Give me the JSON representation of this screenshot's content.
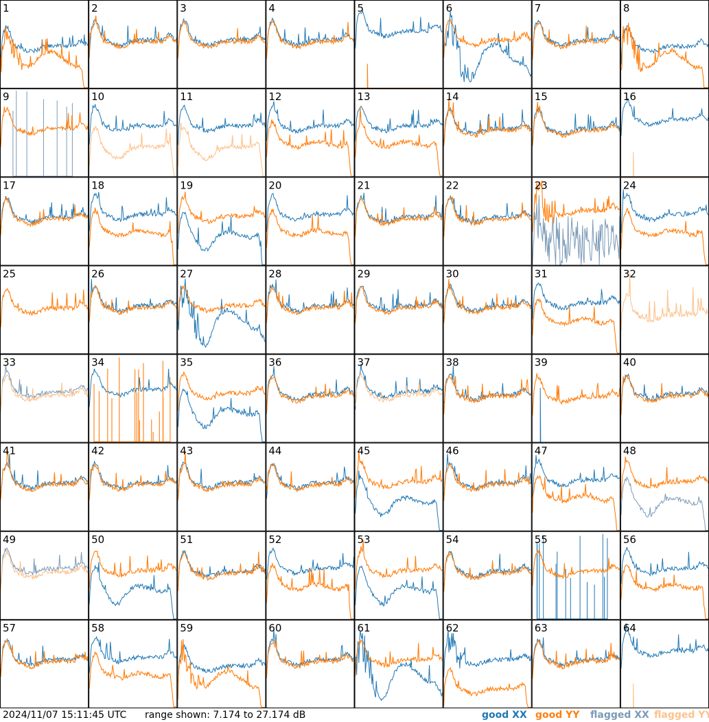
{
  "footer": {
    "timestamp": "2024/11/07 15:11:45 UTC",
    "range": "range shown: 7.174 to 27.174 dB"
  },
  "legend": {
    "good_xx": "good XX",
    "good_yy": "good YY",
    "flagged_xx": "flagged XX",
    "flagged_yy": "flagged YY"
  },
  "colors": {
    "good_xx": "#1f77b4",
    "good_yy": "#ff7f0e",
    "flagged_xx": "#7b9ab8",
    "flagged_yy": "#fdc28c",
    "frame": "#000000"
  },
  "chart_data": {
    "type": "line",
    "layout": "8x8 small multiples of per-tile spectra",
    "grid": false,
    "legend_position": "bottom-right",
    "ylim_db": [
      7.174,
      27.174
    ],
    "series_types": [
      "good XX",
      "good YY",
      "flagged XX",
      "flagged YY"
    ],
    "tiles": [
      {
        "label": "1",
        "xx": "good",
        "yy": "good",
        "shape": "rolloff"
      },
      {
        "label": "2",
        "xx": "good",
        "yy": "good",
        "shape": "flat"
      },
      {
        "label": "3",
        "xx": "good",
        "yy": "good",
        "shape": "flat"
      },
      {
        "label": "4",
        "xx": "good",
        "yy": "good",
        "shape": "flat"
      },
      {
        "label": "5",
        "xx": "good",
        "yy": "good",
        "shape": "yydead"
      },
      {
        "label": "6",
        "xx": "good",
        "yy": "good",
        "shape": "deepdip"
      },
      {
        "label": "7",
        "xx": "good",
        "yy": "good",
        "shape": "flat"
      },
      {
        "label": "8",
        "xx": "good",
        "yy": "good",
        "shape": "rolloff"
      },
      {
        "label": "9",
        "xx": "flagged",
        "yy": "good",
        "shape": "xxspikes"
      },
      {
        "label": "10",
        "xx": "good",
        "yy": "flagged",
        "shape": "splitlow"
      },
      {
        "label": "11",
        "xx": "good",
        "yy": "flagged",
        "shape": "splitlow"
      },
      {
        "label": "12",
        "xx": "good",
        "yy": "good",
        "shape": "split"
      },
      {
        "label": "13",
        "xx": "good",
        "yy": "good",
        "shape": "split"
      },
      {
        "label": "14",
        "xx": "good",
        "yy": "good",
        "shape": "flat"
      },
      {
        "label": "15",
        "xx": "good",
        "yy": "good",
        "shape": "flat"
      },
      {
        "label": "16",
        "xx": "good",
        "yy": "flagged",
        "shape": "yydead"
      },
      {
        "label": "17",
        "xx": "good",
        "yy": "good",
        "shape": "flat"
      },
      {
        "label": "18",
        "xx": "good",
        "yy": "good",
        "shape": "split"
      },
      {
        "label": "19",
        "xx": "good",
        "yy": "good",
        "shape": "splitinv"
      },
      {
        "label": "20",
        "xx": "good",
        "yy": "good",
        "shape": "split"
      },
      {
        "label": "21",
        "xx": "good",
        "yy": "good",
        "shape": "flat"
      },
      {
        "label": "22",
        "xx": "good",
        "yy": "good",
        "shape": "flat"
      },
      {
        "label": "23",
        "xx": "flagged",
        "yy": "good",
        "shape": "xxnoise"
      },
      {
        "label": "24",
        "xx": "good",
        "yy": "good",
        "shape": "split"
      },
      {
        "label": "25",
        "xx": "good",
        "yy": "good",
        "shape": "yyonly"
      },
      {
        "label": "26",
        "xx": "good",
        "yy": "good",
        "shape": "flat"
      },
      {
        "label": "27",
        "xx": "good",
        "yy": "good",
        "shape": "deepdip"
      },
      {
        "label": "28",
        "xx": "good",
        "yy": "good",
        "shape": "flat"
      },
      {
        "label": "29",
        "xx": "good",
        "yy": "good",
        "shape": "flat"
      },
      {
        "label": "30",
        "xx": "good",
        "yy": "good",
        "shape": "flat"
      },
      {
        "label": "31",
        "xx": "good",
        "yy": "good",
        "shape": "split"
      },
      {
        "label": "32",
        "xx": "flagged",
        "yy": "flagged",
        "shape": "flaggedyy"
      },
      {
        "label": "33",
        "xx": "flagged",
        "yy": "flagged",
        "shape": "flaggedboth"
      },
      {
        "label": "34",
        "xx": "good",
        "yy": "good",
        "shape": "yyspikes"
      },
      {
        "label": "35",
        "xx": "good",
        "yy": "good",
        "shape": "splitinv"
      },
      {
        "label": "36",
        "xx": "good",
        "yy": "good",
        "shape": "flat"
      },
      {
        "label": "37",
        "xx": "good",
        "yy": "flagged",
        "shape": "flaggedboth"
      },
      {
        "label": "38",
        "xx": "good",
        "yy": "good",
        "shape": "flat"
      },
      {
        "label": "39",
        "xx": "good",
        "yy": "good",
        "shape": "yyonlyspike"
      },
      {
        "label": "40",
        "xx": "good",
        "yy": "good",
        "shape": "flat"
      },
      {
        "label": "41",
        "xx": "good",
        "yy": "good",
        "shape": "flat"
      },
      {
        "label": "42",
        "xx": "good",
        "yy": "good",
        "shape": "flat"
      },
      {
        "label": "43",
        "xx": "good",
        "yy": "good",
        "shape": "flat"
      },
      {
        "label": "44",
        "xx": "good",
        "yy": "good",
        "shape": "flat"
      },
      {
        "label": "45",
        "xx": "good",
        "yy": "good",
        "shape": "splitinv"
      },
      {
        "label": "46",
        "xx": "good",
        "yy": "good",
        "shape": "flat"
      },
      {
        "label": "47",
        "xx": "good",
        "yy": "good",
        "shape": "split"
      },
      {
        "label": "48",
        "xx": "flagged",
        "yy": "good",
        "shape": "splitinv"
      },
      {
        "label": "49",
        "xx": "flagged",
        "yy": "flagged",
        "shape": "flaggedboth"
      },
      {
        "label": "50",
        "xx": "good",
        "yy": "good",
        "shape": "splitinv"
      },
      {
        "label": "51",
        "xx": "good",
        "yy": "good",
        "shape": "flat"
      },
      {
        "label": "52",
        "xx": "good",
        "yy": "good",
        "shape": "split"
      },
      {
        "label": "53",
        "xx": "good",
        "yy": "good",
        "shape": "splitinv"
      },
      {
        "label": "54",
        "xx": "good",
        "yy": "good",
        "shape": "flat"
      },
      {
        "label": "55",
        "xx": "good",
        "yy": "good",
        "shape": "xxspikesblue"
      },
      {
        "label": "56",
        "xx": "good",
        "yy": "good",
        "shape": "split"
      },
      {
        "label": "57",
        "xx": "good",
        "yy": "good",
        "shape": "flat"
      },
      {
        "label": "58",
        "xx": "good",
        "yy": "good",
        "shape": "split"
      },
      {
        "label": "59",
        "xx": "good",
        "yy": "good",
        "shape": "rolloff"
      },
      {
        "label": "60",
        "xx": "good",
        "yy": "good",
        "shape": "flat"
      },
      {
        "label": "61",
        "xx": "good",
        "yy": "good",
        "shape": "deepdip"
      },
      {
        "label": "62",
        "xx": "good",
        "yy": "good",
        "shape": "yylow"
      },
      {
        "label": "63",
        "xx": "good",
        "yy": "good",
        "shape": "flat"
      },
      {
        "label": "64",
        "xx": "good",
        "yy": "flagged",
        "shape": "yydead"
      }
    ]
  }
}
